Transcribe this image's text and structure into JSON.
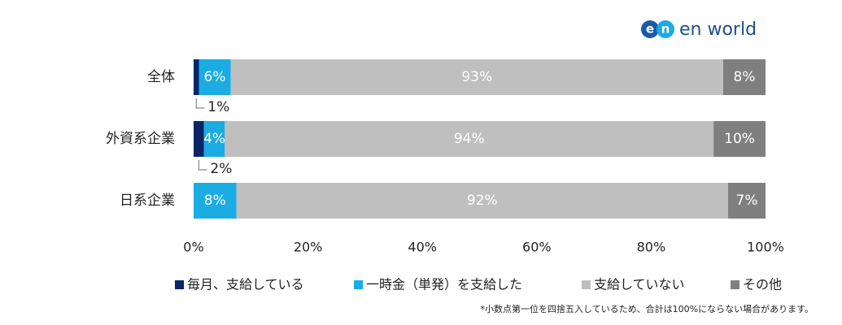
{
  "logo": {
    "mark": [
      "e",
      "n"
    ],
    "text": "en world"
  },
  "chart_data": {
    "type": "bar",
    "categories": [
      "全体",
      "外資系企業",
      "日系企業"
    ],
    "series": [
      {
        "name": "毎月、支給している",
        "color": "#0b2566",
        "values": [
          1,
          2,
          null
        ],
        "value_labels": [
          "1%",
          "2%",
          null
        ]
      },
      {
        "name": "一時金（単発）を支給した",
        "color": "#1aace3",
        "values": [
          6,
          4,
          8
        ],
        "value_labels": [
          "6%",
          "4%",
          "8%"
        ]
      },
      {
        "name": "支給していない",
        "color": "#bfbfbf",
        "values": [
          93,
          94,
          92
        ],
        "value_labels": [
          "93%",
          "94%",
          "92%"
        ]
      },
      {
        "name": "その他",
        "color": "#7f7f7f",
        "values": [
          8,
          10,
          7
        ],
        "value_labels": [
          "8%",
          "10%",
          "7%"
        ]
      }
    ],
    "xlim": [
      0,
      100
    ],
    "xticks": [
      {
        "value": 0,
        "label": "0%"
      },
      {
        "value": 20,
        "label": "20%"
      },
      {
        "value": 40,
        "label": "40%"
      },
      {
        "value": 60,
        "label": "60%"
      },
      {
        "value": 80,
        "label": "80%"
      },
      {
        "value": 100,
        "label": "100%"
      }
    ],
    "note": "*小数点第一位を四捨五入しているため、合計は100%にならない場合があります。"
  }
}
